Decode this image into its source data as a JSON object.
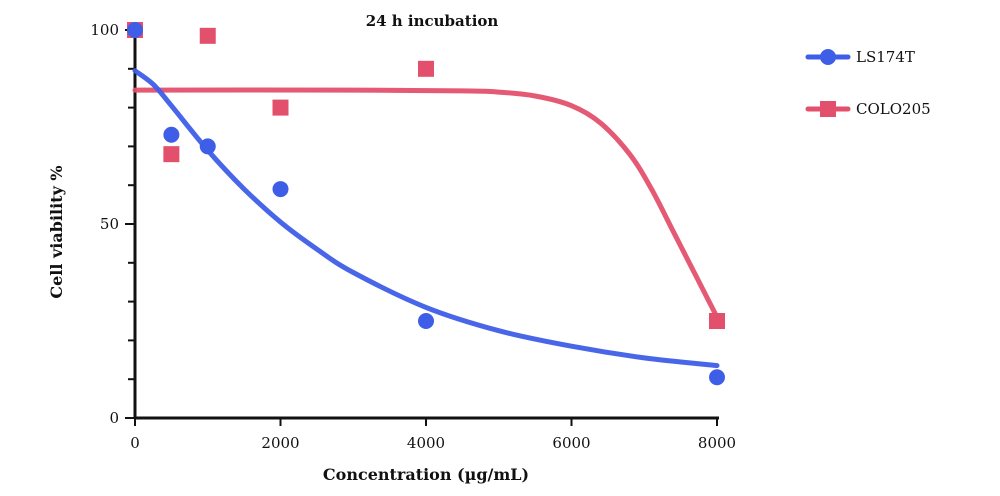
{
  "chart_data": {
    "type": "scatter",
    "title": "24 h incubation",
    "xlabel": "Concentration (µg/mL)",
    "ylabel": "Cell viability %",
    "xlim": [
      0,
      8000
    ],
    "ylim": [
      0,
      100
    ],
    "x_ticks": [
      0,
      2000,
      4000,
      6000,
      8000
    ],
    "x_tick_labels": [
      "0",
      "2000",
      "4000",
      "6000",
      "8000"
    ],
    "y_major_ticks": [
      0,
      50,
      100
    ],
    "y_tick_labels": [
      "0",
      "50",
      "100"
    ],
    "y_minor_step": 10,
    "grid": false,
    "legend_position": "top-right",
    "series": [
      {
        "name": "LS174T",
        "marker": "circle",
        "color": "#3f5ee8",
        "points": [
          {
            "x": 0,
            "y": 100
          },
          {
            "x": 500,
            "y": 73
          },
          {
            "x": 1000,
            "y": 70
          },
          {
            "x": 2000,
            "y": 59
          },
          {
            "x": 4000,
            "y": 25
          },
          {
            "x": 8000,
            "y": 10.5
          }
        ],
        "fit": [
          {
            "x": 0,
            "y": 89.5
          },
          {
            "x": 250,
            "y": 86
          },
          {
            "x": 500,
            "y": 80.5
          },
          {
            "x": 1000,
            "y": 69
          },
          {
            "x": 1500,
            "y": 59
          },
          {
            "x": 2000,
            "y": 50.5
          },
          {
            "x": 2500,
            "y": 43.5
          },
          {
            "x": 3000,
            "y": 37.5
          },
          {
            "x": 4000,
            "y": 28.5
          },
          {
            "x": 5000,
            "y": 22.5
          },
          {
            "x": 6000,
            "y": 18.5
          },
          {
            "x": 7000,
            "y": 15.5
          },
          {
            "x": 8000,
            "y": 13.5
          }
        ]
      },
      {
        "name": "COLO205",
        "marker": "square",
        "color": "#e3506b",
        "points": [
          {
            "x": 0,
            "y": 100
          },
          {
            "x": 500,
            "y": 68
          },
          {
            "x": 1000,
            "y": 98.5
          },
          {
            "x": 2000,
            "y": 80
          },
          {
            "x": 4000,
            "y": 90
          },
          {
            "x": 8000,
            "y": 25
          }
        ],
        "fit": [
          {
            "x": 0,
            "y": 84.5
          },
          {
            "x": 3000,
            "y": 84.5
          },
          {
            "x": 4500,
            "y": 84.3
          },
          {
            "x": 5000,
            "y": 84
          },
          {
            "x": 5500,
            "y": 83
          },
          {
            "x": 6000,
            "y": 80.5
          },
          {
            "x": 6400,
            "y": 76
          },
          {
            "x": 6800,
            "y": 68
          },
          {
            "x": 7100,
            "y": 59
          },
          {
            "x": 7400,
            "y": 48
          },
          {
            "x": 7700,
            "y": 37
          },
          {
            "x": 8000,
            "y": 26
          }
        ]
      }
    ]
  }
}
